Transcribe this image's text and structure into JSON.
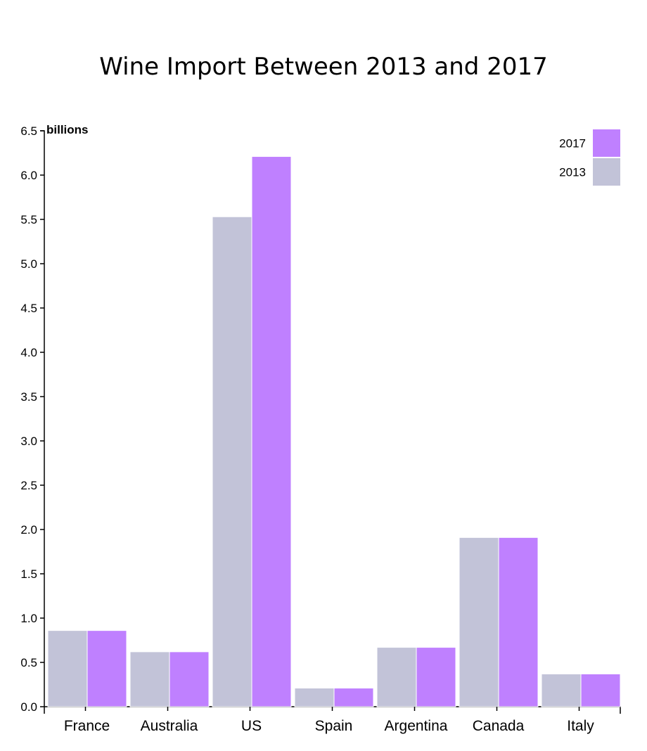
{
  "chart_data": {
    "type": "bar",
    "title": "Wine Import Between 2013 and 2017",
    "ylabel": "billions",
    "xlabel": "",
    "ylim": [
      0,
      6.5
    ],
    "yticks": [
      "0.0",
      "0.5",
      "1.0",
      "1.5",
      "2.0",
      "2.5",
      "3.0",
      "3.5",
      "4.0",
      "4.5",
      "5.0",
      "5.5",
      "6.0",
      "6.5"
    ],
    "categories": [
      "France",
      "Australia",
      "US",
      "Spain",
      "Argentina",
      "Canada",
      "Italy"
    ],
    "series": [
      {
        "name": "2013",
        "color": "#c2c3d8",
        "values": [
          0.86,
          0.62,
          5.53,
          0.21,
          0.67,
          1.91,
          0.37
        ]
      },
      {
        "name": "2017",
        "color": "#bf80ff",
        "values": [
          0.86,
          0.62,
          6.21,
          0.21,
          0.67,
          1.91,
          0.37
        ]
      }
    ],
    "legend": {
      "position": "top-right",
      "order": [
        "2017",
        "2013"
      ]
    },
    "grid": false
  }
}
